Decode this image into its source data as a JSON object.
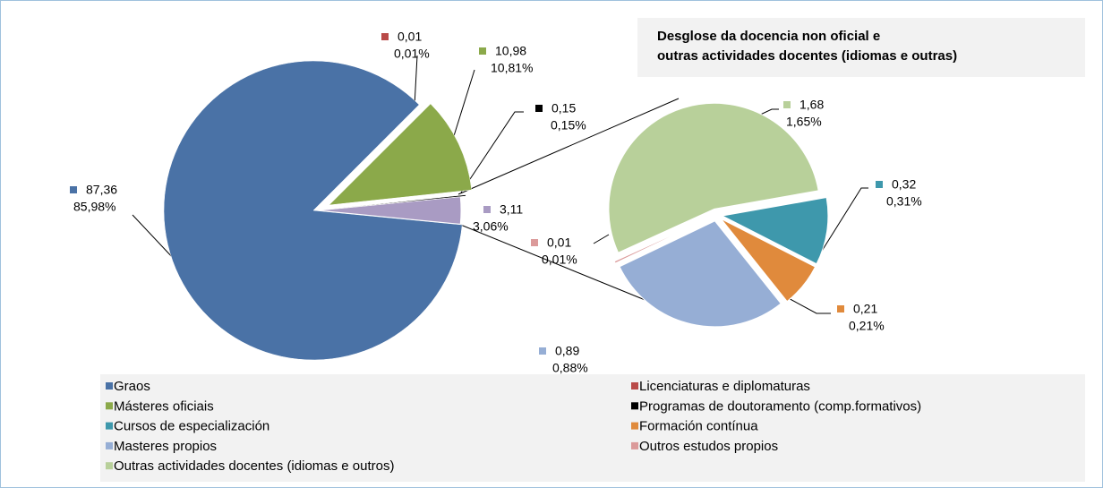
{
  "chart_data": {
    "type": "pie-of-pie",
    "title": "Desglose da docencia non oficial e outras actividades docentes (idiomas  e outras)",
    "categories": [
      "Graos",
      "Licenciaturas e diplomaturas",
      "Másteres oficiais",
      "Programas de doutoramento (comp.formativos)",
      "Cursos de especialización",
      "Formación contínua",
      "Masteres propios",
      "Outros estudos propios",
      "Outras actividades docentes (idiomas e outros)"
    ],
    "values": [
      87.36,
      0.01,
      10.98,
      0.15,
      0.32,
      0.21,
      0.89,
      0.01,
      1.68
    ],
    "value_labels": [
      "87,36",
      "0,01",
      "10,98",
      "0,15",
      "0,32",
      "0,21",
      "0,89",
      "0,01",
      "1,68"
    ],
    "percents": [
      85.98,
      0.01,
      10.81,
      0.15,
      0.31,
      0.21,
      0.88,
      0.01,
      1.65
    ],
    "percent_labels": [
      "85,98%",
      "0,01%",
      "10,81%",
      "0,15%",
      "0,31%",
      "0,21%",
      "0,88%",
      "0,01%",
      "1,65%"
    ],
    "colors": [
      "#4a72a6",
      "#b94a48",
      "#8ba94a",
      "#000000",
      "#3e98ac",
      "#e08a3c",
      "#96aed5",
      "#db9a9a",
      "#b8d09a"
    ],
    "secondary_start": 4,
    "other": {
      "value": 3.11,
      "value_label": "3,11",
      "percent": 3.06,
      "percent_label": "3,06%",
      "color": "#a99bc3"
    }
  }
}
